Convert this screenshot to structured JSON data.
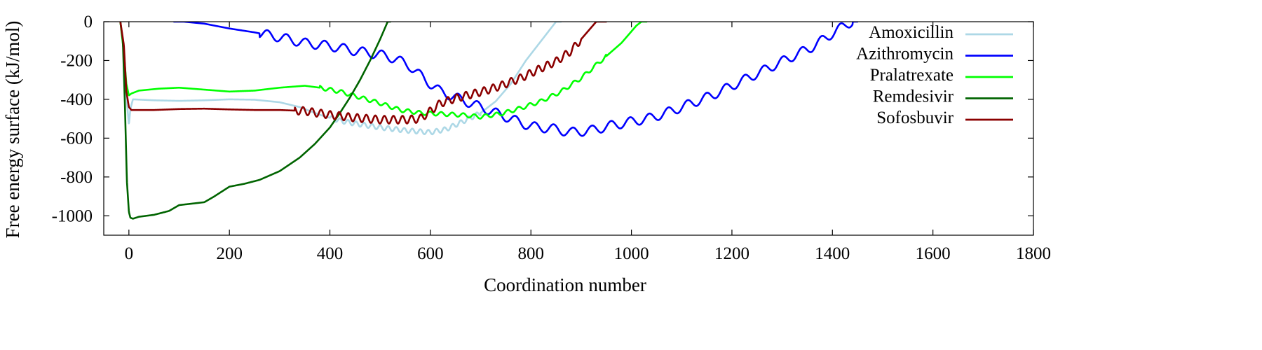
{
  "chart_data": {
    "type": "line",
    "title": "",
    "xlabel": "Coordination number",
    "ylabel": "Free energy surface (kJ/mol)",
    "xlim": [
      -50,
      1800
    ],
    "ylim": [
      -1100,
      0
    ],
    "xticks": [
      0,
      200,
      400,
      600,
      800,
      1000,
      1200,
      1400,
      1600,
      1800
    ],
    "yticks": [
      0,
      -200,
      -400,
      -600,
      -800,
      -1000
    ],
    "grid": false,
    "legend_position": "top-right",
    "series": [
      {
        "name": "Amoxicillin",
        "color": "#add8e6",
        "osc_amp": 12,
        "osc_period": 16,
        "osc_range": [
          400,
          700
        ],
        "points": [
          [
            -17,
            0
          ],
          [
            -10,
            -130
          ],
          [
            -5,
            -380
          ],
          [
            0,
            -530
          ],
          [
            3,
            -450
          ],
          [
            8,
            -400
          ],
          [
            50,
            -405
          ],
          [
            100,
            -408
          ],
          [
            150,
            -405
          ],
          [
            200,
            -400
          ],
          [
            250,
            -402
          ],
          [
            300,
            -415
          ],
          [
            340,
            -440
          ],
          [
            380,
            -480
          ],
          [
            420,
            -510
          ],
          [
            450,
            -525
          ],
          [
            500,
            -545
          ],
          [
            550,
            -560
          ],
          [
            600,
            -570
          ],
          [
            630,
            -555
          ],
          [
            660,
            -520
          ],
          [
            700,
            -470
          ],
          [
            730,
            -410
          ],
          [
            760,
            -320
          ],
          [
            790,
            -200
          ],
          [
            820,
            -100
          ],
          [
            850,
            0
          ],
          [
            860,
            0
          ]
        ]
      },
      {
        "name": "Azithromycin",
        "color": "#0000ff",
        "osc_amp": 24,
        "osc_period": 38,
        "osc_range": [
          260,
          1440
        ],
        "points": [
          [
            90,
            0
          ],
          [
            110,
            0
          ],
          [
            150,
            -10
          ],
          [
            200,
            -35
          ],
          [
            250,
            -55
          ],
          [
            300,
            -80
          ],
          [
            350,
            -110
          ],
          [
            400,
            -125
          ],
          [
            450,
            -150
          ],
          [
            500,
            -170
          ],
          [
            530,
            -190
          ],
          [
            560,
            -230
          ],
          [
            590,
            -300
          ],
          [
            620,
            -360
          ],
          [
            650,
            -390
          ],
          [
            680,
            -420
          ],
          [
            710,
            -450
          ],
          [
            740,
            -480
          ],
          [
            770,
            -510
          ],
          [
            800,
            -540
          ],
          [
            840,
            -550
          ],
          [
            880,
            -570
          ],
          [
            920,
            -560
          ],
          [
            960,
            -535
          ],
          [
            1000,
            -515
          ],
          [
            1040,
            -495
          ],
          [
            1080,
            -460
          ],
          [
            1120,
            -420
          ],
          [
            1160,
            -380
          ],
          [
            1200,
            -330
          ],
          [
            1240,
            -280
          ],
          [
            1280,
            -230
          ],
          [
            1320,
            -180
          ],
          [
            1360,
            -130
          ],
          [
            1400,
            -60
          ],
          [
            1430,
            -10
          ],
          [
            1440,
            0
          ],
          [
            1450,
            0
          ]
        ]
      },
      {
        "name": "Pralatrexate",
        "color": "#00ff00",
        "osc_amp": 10,
        "osc_period": 22,
        "osc_range": [
          380,
          950
        ],
        "points": [
          [
            -17,
            0
          ],
          [
            -10,
            -160
          ],
          [
            -5,
            -320
          ],
          [
            0,
            -380
          ],
          [
            5,
            -370
          ],
          [
            20,
            -355
          ],
          [
            60,
            -345
          ],
          [
            100,
            -340
          ],
          [
            150,
            -350
          ],
          [
            200,
            -360
          ],
          [
            250,
            -355
          ],
          [
            300,
            -340
          ],
          [
            350,
            -330
          ],
          [
            380,
            -340
          ],
          [
            420,
            -360
          ],
          [
            460,
            -390
          ],
          [
            500,
            -420
          ],
          [
            540,
            -455
          ],
          [
            580,
            -470
          ],
          [
            620,
            -475
          ],
          [
            660,
            -480
          ],
          [
            700,
            -490
          ],
          [
            740,
            -475
          ],
          [
            780,
            -445
          ],
          [
            820,
            -410
          ],
          [
            860,
            -360
          ],
          [
            900,
            -290
          ],
          [
            940,
            -200
          ],
          [
            980,
            -110
          ],
          [
            1010,
            -20
          ],
          [
            1020,
            0
          ],
          [
            1030,
            0
          ]
        ]
      },
      {
        "name": "Remdesivir",
        "color": "#006400",
        "osc_amp": 0,
        "osc_period": 20,
        "osc_range": [
          0,
          0
        ],
        "points": [
          [
            -17,
            0
          ],
          [
            -12,
            -100
          ],
          [
            -8,
            -420
          ],
          [
            -4,
            -820
          ],
          [
            0,
            -980
          ],
          [
            3,
            -1010
          ],
          [
            8,
            -1015
          ],
          [
            20,
            -1005
          ],
          [
            50,
            -995
          ],
          [
            80,
            -975
          ],
          [
            100,
            -945
          ],
          [
            150,
            -930
          ],
          [
            170,
            -900
          ],
          [
            200,
            -850
          ],
          [
            230,
            -835
          ],
          [
            260,
            -815
          ],
          [
            300,
            -770
          ],
          [
            340,
            -700
          ],
          [
            370,
            -630
          ],
          [
            400,
            -545
          ],
          [
            420,
            -470
          ],
          [
            440,
            -390
          ],
          [
            460,
            -300
          ],
          [
            480,
            -200
          ],
          [
            500,
            -90
          ],
          [
            510,
            -30
          ],
          [
            515,
            0
          ],
          [
            520,
            0
          ]
        ]
      },
      {
        "name": "Sofosbuvir",
        "color": "#8b0000",
        "osc_amp": 20,
        "osc_period": 18,
        "osc_range": [
          330,
          900
        ],
        "points": [
          [
            -17,
            0
          ],
          [
            -10,
            -120
          ],
          [
            -5,
            -360
          ],
          [
            0,
            -440
          ],
          [
            5,
            -455
          ],
          [
            50,
            -455
          ],
          [
            100,
            -450
          ],
          [
            150,
            -448
          ],
          [
            200,
            -452
          ],
          [
            250,
            -455
          ],
          [
            300,
            -455
          ],
          [
            350,
            -460
          ],
          [
            400,
            -480
          ],
          [
            450,
            -495
          ],
          [
            500,
            -505
          ],
          [
            550,
            -505
          ],
          [
            580,
            -500
          ],
          [
            600,
            -460
          ],
          [
            620,
            -420
          ],
          [
            650,
            -395
          ],
          [
            680,
            -375
          ],
          [
            710,
            -355
          ],
          [
            740,
            -330
          ],
          [
            780,
            -290
          ],
          [
            820,
            -240
          ],
          [
            850,
            -205
          ],
          [
            880,
            -150
          ],
          [
            910,
            -60
          ],
          [
            930,
            0
          ],
          [
            950,
            0
          ]
        ]
      }
    ]
  }
}
